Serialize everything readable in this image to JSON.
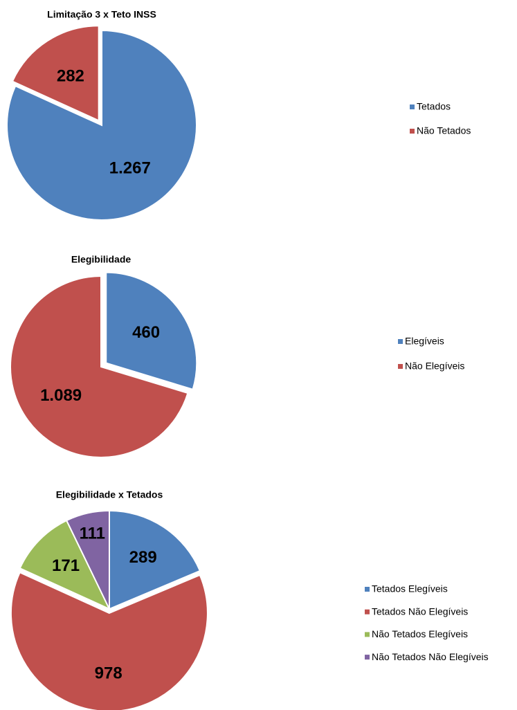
{
  "chart_data": [
    {
      "type": "pie",
      "title": "Limitação 3 x Teto INSS",
      "categories": [
        "Tetados",
        "Não Tetados"
      ],
      "values": [
        1267,
        282
      ],
      "value_labels": [
        "1.267",
        "282"
      ],
      "colors": [
        "#4f81bd",
        "#c0504d"
      ],
      "legend": "right"
    },
    {
      "type": "pie",
      "title": "Elegibilidade",
      "categories": [
        "Elegíveis",
        "Não Elegíveis"
      ],
      "values": [
        460,
        1089
      ],
      "value_labels": [
        "460",
        "1.089"
      ],
      "colors": [
        "#4f81bd",
        "#c0504d"
      ],
      "legend": "right"
    },
    {
      "type": "pie",
      "title": "Elegibilidade x Tetados",
      "categories": [
        "Tetados Elegíveis",
        "Tetados Não Elegíveis",
        "Não Tetados Elegíveis",
        "Não Tetados Não Elegíveis"
      ],
      "values": [
        289,
        978,
        171,
        111
      ],
      "value_labels": [
        "289",
        "978",
        "171",
        "111"
      ],
      "colors": [
        "#4f81bd",
        "#c0504d",
        "#9bbb59",
        "#8064a2"
      ],
      "legend": "right"
    }
  ]
}
